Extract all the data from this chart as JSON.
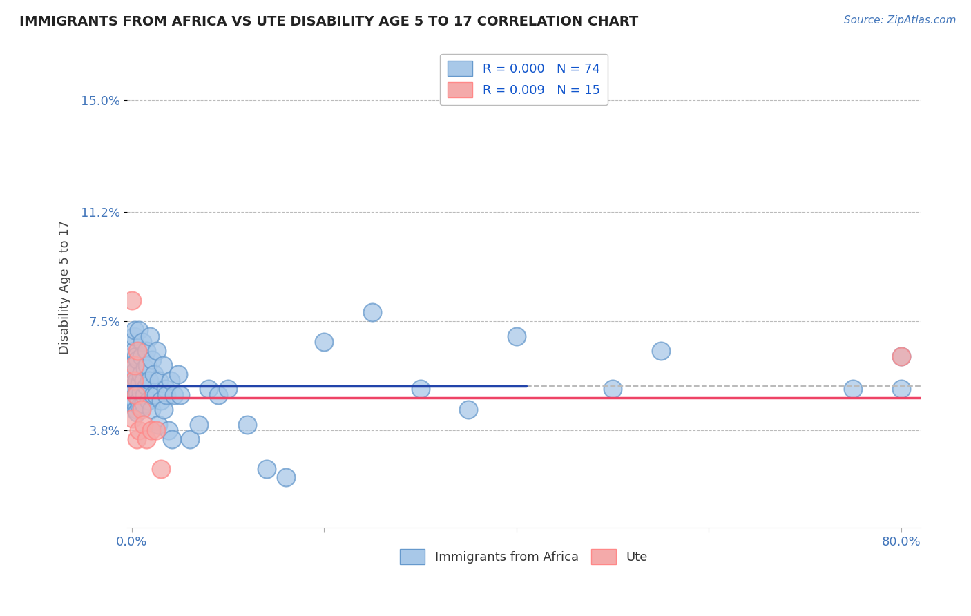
{
  "title": "IMMIGRANTS FROM AFRICA VS UTE DISABILITY AGE 5 TO 17 CORRELATION CHART",
  "source_text": "Source: ZipAtlas.com",
  "ylabel": "Disability Age 5 to 17",
  "y_ticks": [
    0.038,
    0.075,
    0.112,
    0.15
  ],
  "y_tick_labels": [
    "3.8%",
    "7.5%",
    "11.2%",
    "15.0%"
  ],
  "xlim": [
    -0.005,
    0.82
  ],
  "ylim": [
    0.005,
    0.168
  ],
  "blue_label": "Immigrants from Africa",
  "pink_label": "Ute",
  "blue_R": "R = 0.000",
  "blue_N": "N = 74",
  "pink_R": "R = 0.009",
  "pink_N": "N = 15",
  "blue_line_y": 0.053,
  "pink_line_y": 0.049,
  "blue_line_x_solid_end": 0.41,
  "blue_color": "#A8C8E8",
  "pink_color": "#F4AAAA",
  "blue_edge_color": "#6699CC",
  "pink_edge_color": "#FF8888",
  "blue_line_color": "#2244AA",
  "pink_line_color": "#EE4466",
  "dashed_line_color": "#BBBBBB",
  "background_color": "#FFFFFF",
  "grid_color": "#BBBBBB",
  "title_color": "#222222",
  "axis_tick_color": "#4477BB",
  "blue_scatter_x": [
    0.0,
    0.0,
    0.001,
    0.001,
    0.001,
    0.002,
    0.002,
    0.002,
    0.003,
    0.003,
    0.003,
    0.004,
    0.004,
    0.005,
    0.005,
    0.005,
    0.006,
    0.006,
    0.007,
    0.007,
    0.008,
    0.008,
    0.009,
    0.009,
    0.01,
    0.01,
    0.011,
    0.012,
    0.012,
    0.013,
    0.014,
    0.015,
    0.015,
    0.016,
    0.017,
    0.018,
    0.019,
    0.02,
    0.021,
    0.022,
    0.023,
    0.025,
    0.026,
    0.027,
    0.028,
    0.03,
    0.032,
    0.033,
    0.035,
    0.036,
    0.038,
    0.04,
    0.042,
    0.044,
    0.048,
    0.05,
    0.06,
    0.07,
    0.08,
    0.09,
    0.1,
    0.12,
    0.14,
    0.16,
    0.2,
    0.25,
    0.3,
    0.35,
    0.4,
    0.5,
    0.55,
    0.75,
    0.8,
    0.8
  ],
  "blue_scatter_y": [
    0.052,
    0.06,
    0.048,
    0.057,
    0.068,
    0.065,
    0.053,
    0.07,
    0.058,
    0.072,
    0.048,
    0.045,
    0.063,
    0.05,
    0.055,
    0.044,
    0.062,
    0.051,
    0.048,
    0.072,
    0.054,
    0.046,
    0.051,
    0.057,
    0.063,
    0.046,
    0.068,
    0.055,
    0.047,
    0.05,
    0.059,
    0.065,
    0.053,
    0.06,
    0.048,
    0.055,
    0.07,
    0.045,
    0.062,
    0.05,
    0.057,
    0.05,
    0.065,
    0.04,
    0.055,
    0.048,
    0.06,
    0.045,
    0.052,
    0.05,
    0.038,
    0.055,
    0.035,
    0.05,
    0.057,
    0.05,
    0.035,
    0.04,
    0.052,
    0.05,
    0.052,
    0.04,
    0.025,
    0.022,
    0.068,
    0.078,
    0.052,
    0.045,
    0.07,
    0.052,
    0.065,
    0.052,
    0.052,
    0.063
  ],
  "pink_scatter_x": [
    0.0,
    0.001,
    0.002,
    0.003,
    0.004,
    0.005,
    0.006,
    0.007,
    0.01,
    0.012,
    0.015,
    0.02,
    0.025,
    0.03,
    0.8
  ],
  "pink_scatter_y": [
    0.082,
    0.042,
    0.055,
    0.06,
    0.05,
    0.035,
    0.065,
    0.038,
    0.045,
    0.04,
    0.035,
    0.038,
    0.038,
    0.025,
    0.063
  ]
}
